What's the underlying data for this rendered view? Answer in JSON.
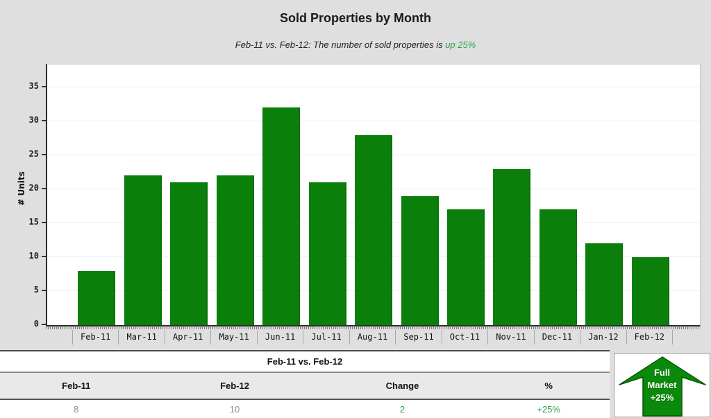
{
  "chart": {
    "title": "Sold Properties by Month",
    "subtitle_prefix": "Feb-11 vs. Feb-12: The number of sold properties is ",
    "subtitle_highlight": "up 25%",
    "y_axis_label": "# Units",
    "bar_color": "#0a800a",
    "highlight_color": "#2fa24c"
  },
  "chart_data": {
    "type": "bar",
    "categories": [
      "Feb-11",
      "Mar-11",
      "Apr-11",
      "May-11",
      "Jun-11",
      "Jul-11",
      "Aug-11",
      "Sep-11",
      "Oct-11",
      "Nov-11",
      "Dec-11",
      "Jan-12",
      "Feb-12"
    ],
    "values": [
      8,
      22,
      21,
      22,
      32,
      21,
      28,
      19,
      17,
      23,
      17,
      12,
      10
    ],
    "title": "Sold Properties by Month",
    "xlabel": "",
    "ylabel": "# Units",
    "ylim": [
      0,
      35
    ],
    "ytick_step": 5,
    "grid": true,
    "legend": "none"
  },
  "table": {
    "title": "Feb-11 vs. Feb-12",
    "columns": [
      "Feb-11",
      "Feb-12",
      "Change",
      "%"
    ],
    "values": [
      "8",
      "10",
      "2",
      "+25%"
    ],
    "value_styles": [
      "muted",
      "muted",
      "positive",
      "positive"
    ]
  },
  "arrow_panel": {
    "line1": "Full",
    "line2": "Market",
    "line3": "+25%",
    "arrow_color": "#0a8a0a"
  }
}
